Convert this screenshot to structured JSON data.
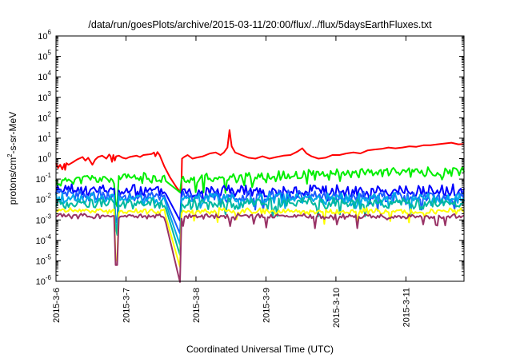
{
  "chart_data": {
    "type": "line",
    "title": "/data/run/goesPlots/archive/2015-03-11/20:00/flux/../flux/5daysEarthFluxes.txt",
    "xlabel": "Coordinated Universal Time (UTC)",
    "ylabel": {
      "prefix": "protons/cm",
      "sup": "2",
      "suffix": "-s-sr-MeV"
    },
    "yscale": "log",
    "ylim": [
      1e-06,
      1000000.0
    ],
    "xlim": [
      "2015-03-06",
      "2015-03-11 20:00"
    ],
    "grid": false,
    "legend": "none",
    "y_ticks": [
      {
        "value": 1e-06,
        "mant": "10",
        "exp": "-6"
      },
      {
        "value": 1e-05,
        "mant": "10",
        "exp": "-5"
      },
      {
        "value": 0.0001,
        "mant": "10",
        "exp": "-4"
      },
      {
        "value": 0.001,
        "mant": "10",
        "exp": "-3"
      },
      {
        "value": 0.01,
        "mant": "10",
        "exp": "-2"
      },
      {
        "value": 0.1,
        "mant": "10",
        "exp": "-1"
      },
      {
        "value": 1.0,
        "mant": "10",
        "exp": "0"
      },
      {
        "value": 10.0,
        "mant": "10",
        "exp": "1"
      },
      {
        "value": 100.0,
        "mant": "10",
        "exp": "2"
      },
      {
        "value": 1000.0,
        "mant": "10",
        "exp": "3"
      },
      {
        "value": 10000.0,
        "mant": "10",
        "exp": "4"
      },
      {
        "value": 100000.0,
        "mant": "10",
        "exp": "5"
      },
      {
        "value": 1000000.0,
        "mant": "10",
        "exp": "6"
      }
    ],
    "x_ticks": [
      {
        "day": 0,
        "label": "2015-3-6"
      },
      {
        "day": 1,
        "label": "2015-3-7"
      },
      {
        "day": 2,
        "label": "2015-3-8"
      },
      {
        "day": 3,
        "label": "2015-3-9"
      },
      {
        "day": 4,
        "label": "2015-3-10"
      },
      {
        "day": 5,
        "label": "2015-3-11"
      }
    ],
    "series": [
      {
        "color": "#ff0000",
        "points": [
          [
            0.0,
            0.6
          ],
          [
            0.03,
            0.35
          ],
          [
            0.06,
            0.5
          ],
          [
            0.09,
            0.3
          ],
          [
            0.12,
            0.55
          ],
          [
            0.13,
            0.28
          ],
          [
            0.15,
            0.6
          ],
          [
            0.18,
            0.5
          ],
          [
            0.25,
            0.7
          ],
          [
            0.3,
            0.9
          ],
          [
            0.38,
            1.2
          ],
          [
            0.42,
            0.8
          ],
          [
            0.46,
            1.1
          ],
          [
            0.52,
            0.5
          ],
          [
            0.56,
            0.9
          ],
          [
            0.6,
            1.2
          ],
          [
            0.66,
            1.4
          ],
          [
            0.72,
            1.0
          ],
          [
            0.76,
            1.6
          ],
          [
            0.78,
            1.3
          ],
          [
            0.8,
            0.7
          ],
          [
            0.82,
            1.5
          ],
          [
            0.84,
            0.8
          ],
          [
            0.86,
            1.3
          ],
          [
            0.9,
            1.4
          ],
          [
            0.95,
            1.1
          ],
          [
            1.0,
            1.0
          ],
          [
            1.05,
            1.2
          ],
          [
            1.1,
            1.3
          ],
          [
            1.15,
            1.4
          ],
          [
            1.2,
            1.2
          ],
          [
            1.25,
            1.5
          ],
          [
            1.32,
            1.6
          ],
          [
            1.37,
            1.7
          ],
          [
            1.4,
            2.0
          ],
          [
            1.42,
            1.3
          ],
          [
            1.45,
            2.1
          ],
          [
            1.48,
            1.5
          ],
          [
            1.55,
            0.4
          ],
          [
            1.63,
            0.12
          ],
          [
            1.72,
            0.04
          ],
          [
            1.79,
            0.02
          ],
          [
            1.8,
            1.0
          ],
          [
            1.83,
            1.2
          ],
          [
            1.88,
            1.5
          ],
          [
            1.95,
            1.0
          ],
          [
            2.0,
            1.1
          ],
          [
            2.1,
            1.3
          ],
          [
            2.2,
            1.8
          ],
          [
            2.28,
            2.0
          ],
          [
            2.35,
            1.5
          ],
          [
            2.4,
            2.0
          ],
          [
            2.45,
            3.5
          ],
          [
            2.48,
            25
          ],
          [
            2.51,
            4.0
          ],
          [
            2.56,
            2.0
          ],
          [
            2.65,
            1.5
          ],
          [
            2.75,
            1.1
          ],
          [
            2.85,
            1.0
          ],
          [
            2.95,
            1.3
          ],
          [
            3.05,
            1.0
          ],
          [
            3.15,
            1.2
          ],
          [
            3.25,
            1.4
          ],
          [
            3.35,
            1.5
          ],
          [
            3.45,
            2.2
          ],
          [
            3.52,
            3.2
          ],
          [
            3.58,
            1.8
          ],
          [
            3.65,
            1.3
          ],
          [
            3.75,
            1.0
          ],
          [
            3.85,
            1.1
          ],
          [
            3.95,
            1.5
          ],
          [
            4.05,
            1.5
          ],
          [
            4.15,
            1.8
          ],
          [
            4.25,
            2.0
          ],
          [
            4.35,
            1.8
          ],
          [
            4.45,
            2.5
          ],
          [
            4.55,
            2.8
          ],
          [
            4.65,
            3.0
          ],
          [
            4.75,
            3.5
          ],
          [
            4.85,
            3.2
          ],
          [
            4.95,
            3.5
          ],
          [
            5.05,
            4.0
          ],
          [
            5.15,
            3.8
          ],
          [
            5.25,
            4.5
          ],
          [
            5.35,
            4.5
          ],
          [
            5.45,
            5.0
          ],
          [
            5.55,
            5.5
          ],
          [
            5.65,
            6.0
          ],
          [
            5.75,
            5.0
          ],
          [
            5.83,
            5.2
          ]
        ]
      },
      {
        "color": "#00ee00",
        "base": 0.09,
        "noise": 0.45,
        "seed": 11,
        "dip": 0.02,
        "rise": true
      },
      {
        "color": "#0000ff",
        "base": 0.025,
        "noise": 0.55,
        "seed": 23,
        "dip": 0.0007,
        "rise": false
      },
      {
        "color": "#1c5cff",
        "base": 0.014,
        "noise": 0.5,
        "seed": 37,
        "dip": 0.00015,
        "rise": false
      },
      {
        "color": "#00a8e8",
        "base": 0.01,
        "noise": 0.5,
        "seed": 41,
        "dip": 4e-05,
        "rise": false
      },
      {
        "color": "#00b8a0",
        "base": 0.006,
        "noise": 0.45,
        "seed": 53,
        "dip": 1.2e-05,
        "rise": false
      },
      {
        "color": "#ffff00",
        "base": 0.0025,
        "noise": 0.2,
        "seed": 61,
        "dip": 3e-06,
        "rise": false
      },
      {
        "color": "#993366",
        "base": 0.0014,
        "noise": 0.15,
        "seed": 73,
        "dip": 5e-07,
        "rise": false
      }
    ]
  }
}
